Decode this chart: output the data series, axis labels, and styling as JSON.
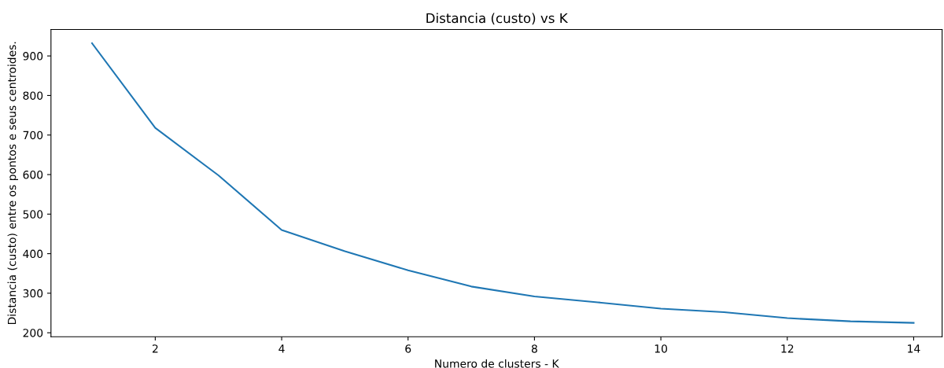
{
  "chart_data": {
    "type": "line",
    "title": "Distancia (custo) vs K",
    "xlabel": "Numero de clusters - K",
    "ylabel": "Distancia (custo) entre os pontos e seus centroides.",
    "x": [
      1,
      2,
      3,
      4,
      5,
      6,
      7,
      8,
      9,
      10,
      11,
      12,
      13,
      14
    ],
    "series": [
      {
        "color": "#1f77b4",
        "values": [
          932,
          718,
          598,
          460,
          406,
          358,
          317,
          292,
          277,
          261,
          252,
          237,
          229,
          225
        ]
      }
    ],
    "xlim": [
      0.35,
      14.45
    ],
    "ylim": [
      190,
      967
    ],
    "xticks": [
      2,
      4,
      6,
      8,
      10,
      12,
      14
    ],
    "yticks": [
      200,
      300,
      400,
      500,
      600,
      700,
      800,
      900
    ],
    "grid": false,
    "legend": false
  }
}
